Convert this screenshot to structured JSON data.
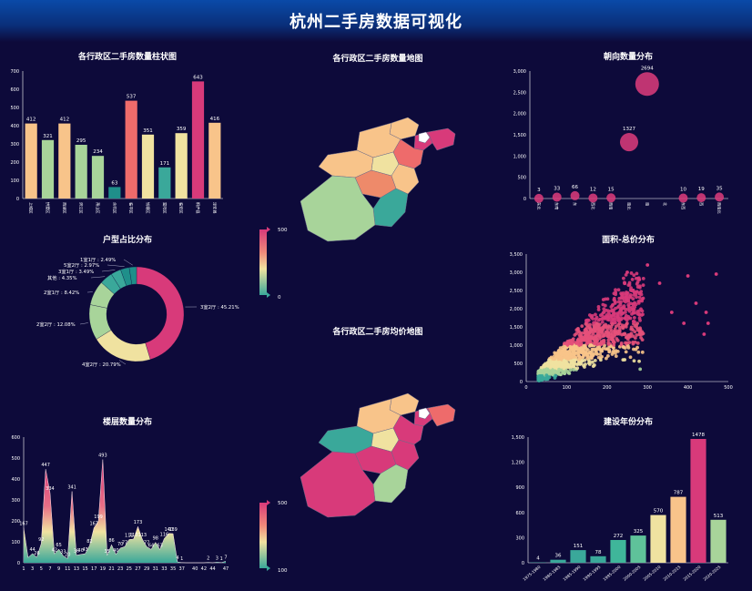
{
  "header": {
    "title": "杭州二手房数据可视化"
  },
  "panels": {
    "bar_district": "各行政区二手房数量柱状图",
    "map_count": "各行政区二手房数量地图",
    "orientation": "朝向数量分布",
    "room_type": "户型占比分布",
    "area_price": "面积-总价分布",
    "map_price": "各行政区二手房均价地图",
    "floor": "楼层数量分布",
    "build_year": "建设年份分布"
  },
  "colors": {
    "pink": "#d83a7a",
    "salmon": "#ee6b6b",
    "peach": "#f8c48a",
    "cream": "#f0e2a0",
    "green": "#a8d49a",
    "teal": "#3aa89a",
    "deepteal": "#1f8f8a",
    "axis": "#ffffff"
  },
  "chart_data": [
    {
      "id": "bar_district",
      "type": "bar",
      "categories": [
        "上城区",
        "拱墅区",
        "西湖区",
        "滨江区",
        "萧山区",
        "余杭区",
        "临平区",
        "钱塘区",
        "富阳区",
        "临安区",
        "桐庐县",
        "淳安县"
      ],
      "values": [
        412,
        321,
        412,
        295,
        234,
        63,
        537,
        351,
        171,
        359,
        643,
        416
      ],
      "ylim": [
        0,
        700
      ],
      "yticks": [
        0,
        100,
        200,
        300,
        400,
        500,
        600,
        700
      ]
    },
    {
      "id": "orientation",
      "type": "scatter",
      "categories": [
        "东北",
        "东南",
        "东",
        "西北",
        "西南",
        "南北",
        "南",
        "北",
        "东西",
        "西",
        "西南北"
      ],
      "values": [
        3,
        33,
        66,
        12,
        15,
        1327,
        2694,
        0,
        10,
        19,
        35
      ],
      "labels": [
        "3",
        "33",
        "66",
        "12",
        "15",
        "1327",
        "2694",
        "",
        "10",
        "19",
        "35"
      ],
      "ylim": [
        0,
        3000
      ],
      "yticks": [
        "0",
        "500",
        "1,000",
        "1,500",
        "2,000",
        "2,500",
        "3,000"
      ]
    },
    {
      "id": "room_type",
      "type": "pie",
      "slices": [
        {
          "label": "3室2厅 : 45.21%",
          "value": 45.21
        },
        {
          "label": "4室2厅 : 20.79%",
          "value": 20.79
        },
        {
          "label": "2室2厅 : 12.08%",
          "value": 12.08
        },
        {
          "label": "2室1厅 : 8.42%",
          "value": 8.42
        },
        {
          "label": "其他 : 4.35%",
          "value": 4.35
        },
        {
          "label": "3室1厅 : 3.49%",
          "value": 3.49
        },
        {
          "label": "5室2厅 : 2.97%",
          "value": 2.97
        },
        {
          "label": "1室1厅 : 2.49%",
          "value": 2.49
        }
      ]
    },
    {
      "id": "area_price",
      "type": "scatter",
      "xlim": [
        0,
        500
      ],
      "ylim": [
        0,
        3500
      ],
      "xticks": [
        "0",
        "100",
        "200",
        "300",
        "400",
        "500"
      ],
      "yticks": [
        "0",
        "500",
        "1,000",
        "1,500",
        "2,000",
        "2,500",
        "3,000",
        "3,500"
      ]
    },
    {
      "id": "floor",
      "type": "area",
      "x": [
        1,
        2,
        3,
        4,
        5,
        6,
        7,
        8,
        9,
        10,
        11,
        12,
        13,
        14,
        15,
        16,
        17,
        18,
        19,
        20,
        21,
        22,
        23,
        24,
        25,
        26,
        27,
        28,
        29,
        30,
        31,
        32,
        33,
        34,
        35,
        36,
        37,
        38,
        39,
        40,
        41,
        42,
        43,
        44,
        45,
        46,
        47
      ],
      "values": [
        167,
        25,
        44,
        26,
        92,
        447,
        334,
        42,
        65,
        33,
        20,
        341,
        36,
        40,
        43,
        82,
        167,
        199,
        493,
        35,
        86,
        40,
        70,
        77,
        111,
        113,
        173,
        113,
        77,
        64,
        98,
        63,
        116,
        140,
        139,
        4,
        1,
        0,
        0,
        0,
        0,
        0,
        2,
        0,
        3,
        1,
        7
      ],
      "labels": [
        "167",
        "",
        "44",
        "26",
        "92",
        "447",
        "334",
        "42",
        "65",
        "33",
        "20",
        "341",
        "36",
        "40",
        "43",
        "82",
        "167",
        "199",
        "493",
        "35",
        "86",
        "40",
        "70",
        "77",
        "111",
        "113",
        "173",
        "113",
        "77",
        "64",
        "98",
        "63",
        "116",
        "140",
        "139",
        "4",
        "1",
        "",
        "",
        "",
        "",
        "",
        "2",
        "",
        "3",
        "1",
        "7"
      ],
      "xticks": [
        "1",
        "3",
        "5",
        "7",
        "9",
        "11",
        "13",
        "15",
        "17",
        "19",
        "21",
        "23",
        "25",
        "27",
        "29",
        "31",
        "33",
        "35",
        "37",
        "40",
        "42",
        "44",
        "47"
      ],
      "ylim": [
        0,
        600
      ],
      "yticks": [
        0,
        100,
        200,
        300,
        400,
        500,
        600
      ]
    },
    {
      "id": "build_year",
      "type": "bar",
      "categories": [
        "1975-1980",
        "1980-1985",
        "1985-1990",
        "1990-1995",
        "1995-2000",
        "2000-2005",
        "2005-2010",
        "2010-2015",
        "2015-2020",
        "2020-2025"
      ],
      "values": [
        4,
        36,
        151,
        78,
        272,
        325,
        570,
        787,
        1478,
        513
      ],
      "ylim": [
        0,
        1500
      ],
      "yticks": [
        "0",
        "300",
        "600",
        "900",
        "1,200",
        "1,500"
      ]
    }
  ],
  "visual_maps": [
    {
      "id": "map_count",
      "max": "500",
      "min": "0"
    },
    {
      "id": "map_price",
      "max": "500",
      "min": "100"
    }
  ]
}
